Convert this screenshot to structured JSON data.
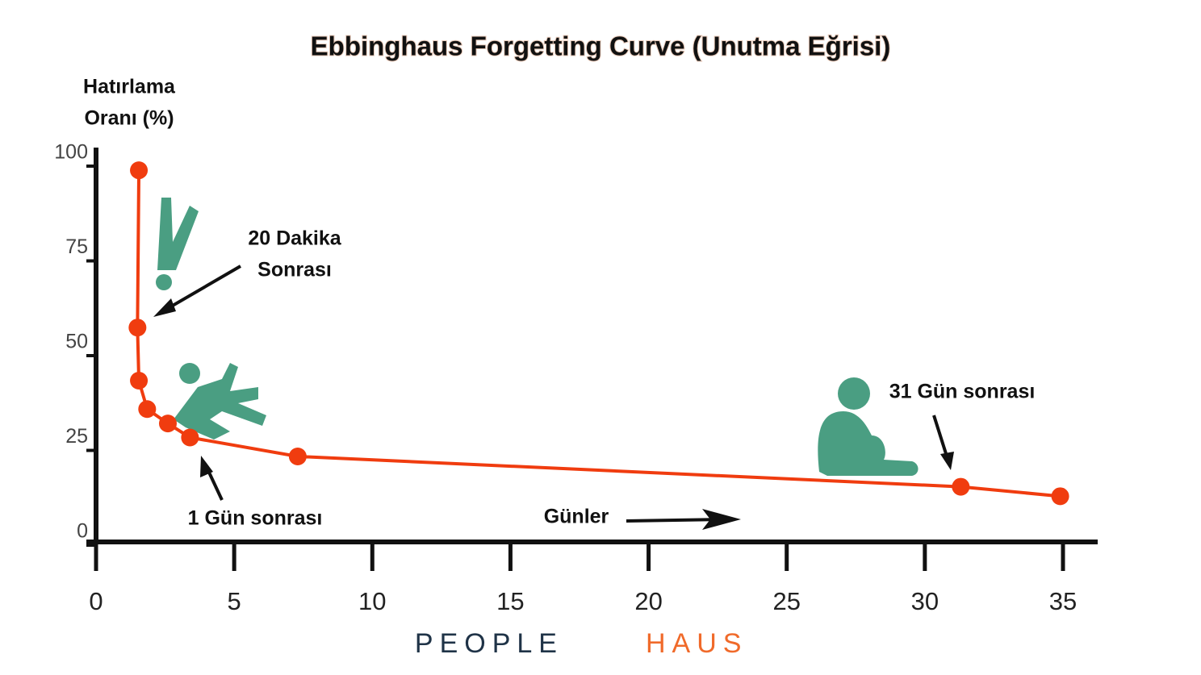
{
  "chart_data": {
    "type": "line",
    "title": "Ebbinghaus Forgetting Curve (Unutma Eğrisi)",
    "y_label": [
      "Hatırlama",
      "Oranı (%)"
    ],
    "x_label": "Günler",
    "annotations": [
      [
        "20 Dakika",
        "Sonrası"
      ],
      [
        "1 Gün sonrası"
      ],
      [
        "31 Gün sonrası"
      ]
    ],
    "x": [
      1.55,
      1.5,
      1.55,
      1.85,
      2.6,
      3.4,
      7.3,
      31.3,
      34.9
    ],
    "series": [
      {
        "name": "Hatırlama",
        "color": "#f03c0f",
        "values": [
          95.5,
          54,
          40,
          32.5,
          28.7,
          25,
          20,
          12,
          9.5
        ]
      }
    ],
    "xlim": [
      0,
      35
    ],
    "xticks": [
      0,
      5,
      10,
      15,
      20,
      25,
      30,
      35
    ],
    "ylim": [
      0,
      100
    ],
    "yticks": [
      0,
      25,
      50,
      75,
      100
    ]
  },
  "footer": {
    "brand_left": "PEOPLE",
    "brand_right": "HAUS"
  }
}
